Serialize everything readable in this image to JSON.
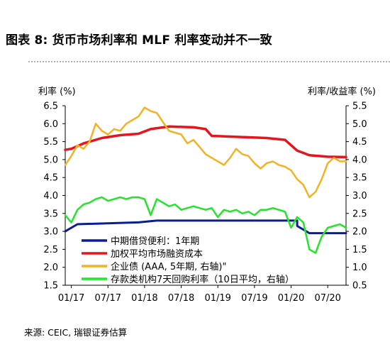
{
  "title": "图表 8: 货币市场利率和 MLF 利率变动并不一致",
  "source": "来源: CEIC, 瑞银证券估算",
  "chart_data": {
    "type": "line",
    "left_axis_label": "利率 (%)",
    "right_axis_label": "利率/收益率 (%)",
    "left_ylim": [
      1.5,
      6.5
    ],
    "right_ylim": [
      0.5,
      5.5
    ],
    "left_ticks": [
      "6.5",
      "6.0",
      "5.5",
      "5.0",
      "4.5",
      "4.0",
      "3.5",
      "3.0",
      "2.5",
      "2.0",
      "1.5"
    ],
    "right_ticks": [
      "5.5",
      "5.0",
      "4.5",
      "4.0",
      "3.5",
      "3.0",
      "2.5",
      "2.0",
      "1.5",
      "1.0",
      "0.5"
    ],
    "x_ticks": [
      "01/17",
      "07/17",
      "01/18",
      "07/18",
      "01/19",
      "07/19",
      "01/20",
      "07/20"
    ],
    "x_range": [
      "2016-12",
      "2020-10"
    ],
    "grid": false,
    "legend_position": "bottom-left",
    "series": [
      {
        "name": "中期借贷便利：1年期",
        "axis": "left",
        "color": "#0a1f8f",
        "points": [
          [
            "2016-12",
            3.0
          ],
          [
            "2017-01",
            3.1
          ],
          [
            "2017-02",
            3.2
          ],
          [
            "2017-12",
            3.25
          ],
          [
            "2018-03",
            3.3
          ],
          [
            "2020-02",
            3.3
          ],
          [
            "2020-02",
            3.15
          ],
          [
            "2020-04",
            2.95
          ],
          [
            "2020-10",
            2.95
          ]
        ]
      },
      {
        "name": "加权平均市场融资成本",
        "axis": "left",
        "color": "#e8141b",
        "points": [
          [
            "2016-12",
            5.27
          ],
          [
            "2017-01",
            5.3
          ],
          [
            "2017-03",
            5.45
          ],
          [
            "2017-06",
            5.6
          ],
          [
            "2017-09",
            5.68
          ],
          [
            "2017-12",
            5.72
          ],
          [
            "2018-02",
            5.85
          ],
          [
            "2018-05",
            5.92
          ],
          [
            "2018-09",
            5.9
          ],
          [
            "2018-11",
            5.85
          ],
          [
            "2018-12",
            5.66
          ],
          [
            "2019-03",
            5.64
          ],
          [
            "2019-06",
            5.62
          ],
          [
            "2019-09",
            5.6
          ],
          [
            "2019-12",
            5.55
          ],
          [
            "2020-01",
            5.4
          ],
          [
            "2020-02",
            5.25
          ],
          [
            "2020-04",
            5.12
          ],
          [
            "2020-07",
            5.08
          ],
          [
            "2020-10",
            5.07
          ]
        ]
      },
      {
        "name": "企业债 (AAA, 5年期, 右轴)\"",
        "axis": "right",
        "color": "#f4b223",
        "points": [
          [
            "2016-12",
            3.85
          ],
          [
            "2017-01",
            4.1
          ],
          [
            "2017-02",
            4.4
          ],
          [
            "2017-03",
            4.3
          ],
          [
            "2017-04",
            4.5
          ],
          [
            "2017-05",
            5.0
          ],
          [
            "2017-06",
            4.8
          ],
          [
            "2017-07",
            4.7
          ],
          [
            "2017-08",
            4.85
          ],
          [
            "2017-09",
            4.8
          ],
          [
            "2017-10",
            5.0
          ],
          [
            "2017-11",
            5.1
          ],
          [
            "2017-12",
            5.2
          ],
          [
            "2018-01",
            5.45
          ],
          [
            "2018-02",
            5.35
          ],
          [
            "2018-03",
            5.3
          ],
          [
            "2018-04",
            5.05
          ],
          [
            "2018-05",
            4.8
          ],
          [
            "2018-06",
            4.75
          ],
          [
            "2018-07",
            4.7
          ],
          [
            "2018-08",
            4.45
          ],
          [
            "2018-09",
            4.55
          ],
          [
            "2018-10",
            4.35
          ],
          [
            "2018-11",
            4.15
          ],
          [
            "2018-12",
            4.05
          ],
          [
            "2019-01",
            3.95
          ],
          [
            "2019-02",
            3.85
          ],
          [
            "2019-03",
            4.05
          ],
          [
            "2019-04",
            4.3
          ],
          [
            "2019-05",
            4.15
          ],
          [
            "2019-06",
            4.1
          ],
          [
            "2019-07",
            3.9
          ],
          [
            "2019-08",
            3.75
          ],
          [
            "2019-09",
            3.9
          ],
          [
            "2019-10",
            3.95
          ],
          [
            "2019-11",
            3.85
          ],
          [
            "2019-12",
            3.8
          ],
          [
            "2020-01",
            3.7
          ],
          [
            "2020-02",
            3.45
          ],
          [
            "2020-03",
            3.3
          ],
          [
            "2020-04",
            2.95
          ],
          [
            "2020-05",
            3.1
          ],
          [
            "2020-06",
            3.45
          ],
          [
            "2020-07",
            3.9
          ],
          [
            "2020-08",
            4.05
          ],
          [
            "2020-09",
            3.95
          ],
          [
            "2020-10",
            3.95
          ]
        ]
      },
      {
        "name": "存款类机构7天回购利率（10日平均，右轴）",
        "axis": "right",
        "color": "#22e62a",
        "points": [
          [
            "2016-12",
            2.45
          ],
          [
            "2017-01",
            2.25
          ],
          [
            "2017-02",
            2.6
          ],
          [
            "2017-03",
            2.75
          ],
          [
            "2017-04",
            2.8
          ],
          [
            "2017-05",
            2.9
          ],
          [
            "2017-06",
            2.95
          ],
          [
            "2017-07",
            2.85
          ],
          [
            "2017-08",
            2.9
          ],
          [
            "2017-09",
            2.95
          ],
          [
            "2017-10",
            2.9
          ],
          [
            "2017-11",
            2.95
          ],
          [
            "2017-12",
            2.95
          ],
          [
            "2018-01",
            2.9
          ],
          [
            "2018-02",
            2.45
          ],
          [
            "2018-03",
            2.9
          ],
          [
            "2018-04",
            2.8
          ],
          [
            "2018-05",
            2.7
          ],
          [
            "2018-06",
            2.75
          ],
          [
            "2018-07",
            2.6
          ],
          [
            "2018-08",
            2.65
          ],
          [
            "2018-09",
            2.7
          ],
          [
            "2018-10",
            2.65
          ],
          [
            "2018-11",
            2.6
          ],
          [
            "2018-12",
            2.65
          ],
          [
            "2019-01",
            2.4
          ],
          [
            "2019-02",
            2.6
          ],
          [
            "2019-03",
            2.55
          ],
          [
            "2019-04",
            2.6
          ],
          [
            "2019-05",
            2.5
          ],
          [
            "2019-06",
            2.55
          ],
          [
            "2019-07",
            2.45
          ],
          [
            "2019-08",
            2.6
          ],
          [
            "2019-09",
            2.6
          ],
          [
            "2019-10",
            2.65
          ],
          [
            "2019-11",
            2.6
          ],
          [
            "2019-12",
            2.55
          ],
          [
            "2020-01",
            2.1
          ],
          [
            "2020-02",
            2.4
          ],
          [
            "2020-03",
            2.25
          ],
          [
            "2020-04",
            1.5
          ],
          [
            "2020-05",
            1.4
          ],
          [
            "2020-06",
            1.85
          ],
          [
            "2020-07",
            2.1
          ],
          [
            "2020-08",
            2.15
          ],
          [
            "2020-09",
            2.2
          ],
          [
            "2020-10",
            2.1
          ]
        ]
      }
    ]
  }
}
